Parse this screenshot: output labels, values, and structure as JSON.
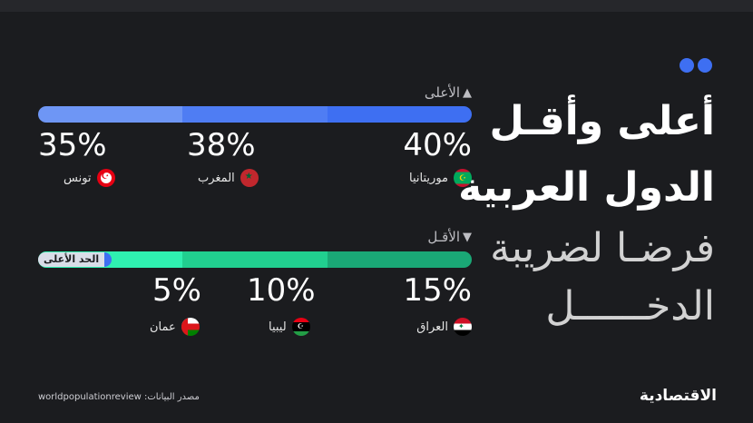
{
  "title_lines": [
    "أعلى وأقـل",
    "الدول العربية",
    "فرضـا لضريبة",
    "الدخــــــل"
  ],
  "colors": {
    "accent": "#3e6ff2",
    "highest_segments": [
      "#6e96f5",
      "#4f7df3",
      "#3e6ff2"
    ],
    "lowest_segments": [
      "#2ff0b0",
      "#21cf8f",
      "#1aa876"
    ]
  },
  "chart_data": [
    {
      "type": "bar",
      "label": "الأعلى",
      "label_icon": "up-arrow",
      "categories": [
        "موريتانيا",
        "المغرب",
        "تونس"
      ],
      "values": [
        40,
        38,
        35
      ],
      "value_labels": [
        "40%",
        "38%",
        "35%"
      ],
      "unit": "%"
    },
    {
      "type": "bar",
      "label": "الأقـل",
      "label_icon": "down-arrow",
      "categories": [
        "العراق",
        "ليبيا",
        "عمان"
      ],
      "values": [
        15,
        10,
        5
      ],
      "value_labels": [
        "15%",
        "10%",
        "5%"
      ],
      "unit": "%",
      "reference_label": "الحد الأعلى"
    }
  ],
  "flags": [
    "mauritania-flag",
    "morocco-flag",
    "tunisia-flag",
    "iraq-flag",
    "libya-flag",
    "oman-flag"
  ],
  "source": "مصدر البيانات: worldpopulationreview",
  "logo": "الاقتصادية"
}
